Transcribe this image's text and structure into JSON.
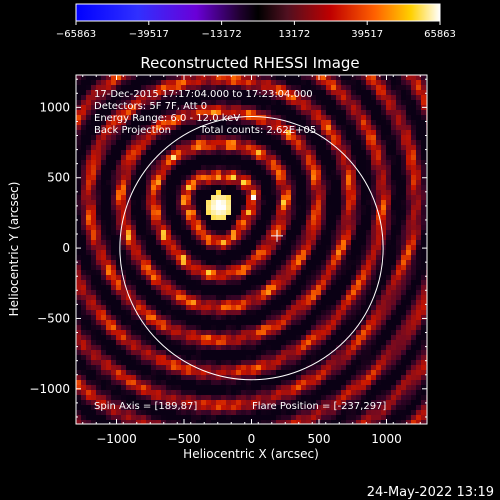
{
  "chart_data": {
    "type": "heatmap",
    "title": "Reconstructed RHESSI Image",
    "xlabel": "Heliocentric X (arcsec)",
    "ylabel": "Heliocentric Y (arcsec)",
    "xlim": [
      -1300,
      1300
    ],
    "ylim": [
      -1250,
      1230
    ],
    "x_ticks": [
      -1000,
      -500,
      0,
      500,
      1000
    ],
    "x_tick_labels": [
      "−1000",
      "−500",
      "0",
      "500",
      "1000"
    ],
    "y_ticks": [
      -1000,
      -500,
      0,
      500,
      1000
    ],
    "y_tick_labels": [
      "−1000",
      "−500",
      "0",
      "500",
      "1000"
    ],
    "colorbar": {
      "min": -65863,
      "max": 65863,
      "tick_values": [
        -65863,
        -39517,
        -13172,
        13172,
        39517,
        65863
      ],
      "tick_labels": [
        "−65863",
        "−39517",
        "−13172",
        "13172",
        "39517",
        "65863"
      ],
      "low_color": "#0000ff",
      "high_color": "#ffffff"
    },
    "solar_disk": {
      "center": [
        0,
        0
      ],
      "radius": 975
    },
    "sun_center_marker": [
      189,
      87
    ],
    "flare_source": {
      "x": -237,
      "y": 297,
      "peak": 65863
    },
    "annotations": {
      "time_range": "17-Dec-2015 17:17:04.000 to 17:23:04.000",
      "detectors": "Detectors: 5F 7F, Att 0",
      "energy_range": "Energy Range: 6.0 - 12.0 keV",
      "method": "Back Projection",
      "total_counts": "Total counts: 2.62E+05",
      "spin_axis": "Spin Axis = [189,87]",
      "flare_position": "Flare Position = [-237,297]"
    },
    "timestamp": "24-May-2022 13:19"
  }
}
